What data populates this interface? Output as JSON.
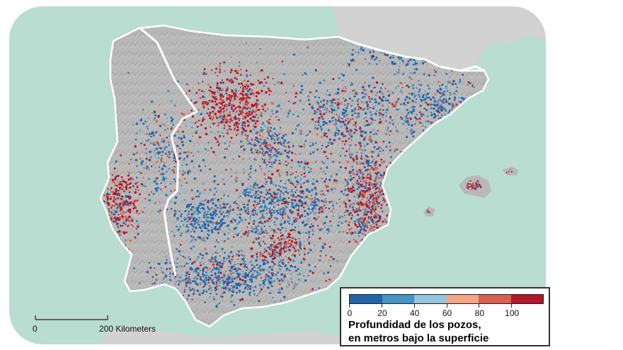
{
  "map": {
    "colors": {
      "sea": "#b9ddd0",
      "land_inside": "#b8b8b8",
      "land_outside": "#d2d2d2",
      "border": "#ffffff",
      "frame_white": "#ffffff"
    }
  },
  "scale_bar": {
    "start_label": "0",
    "end_label": "200 Kilometers"
  },
  "legend": {
    "title_line1": "Profundidad de los pozos,",
    "title_line2": "en metros bajo la superficie",
    "ticks": [
      "0",
      "20",
      "40",
      "60",
      "80",
      "100"
    ],
    "bins": [
      {
        "range": [
          0,
          20
        ],
        "color": "#2166ac"
      },
      {
        "range": [
          20,
          40
        ],
        "color": "#4393c3"
      },
      {
        "range": [
          40,
          60
        ],
        "color": "#92c5de"
      },
      {
        "range": [
          60,
          80
        ],
        "color": "#f4a582"
      },
      {
        "range": [
          80,
          100
        ],
        "color": "#d6604d"
      },
      {
        "range": [
          100,
          120
        ],
        "color": "#b2182b"
      }
    ]
  }
}
